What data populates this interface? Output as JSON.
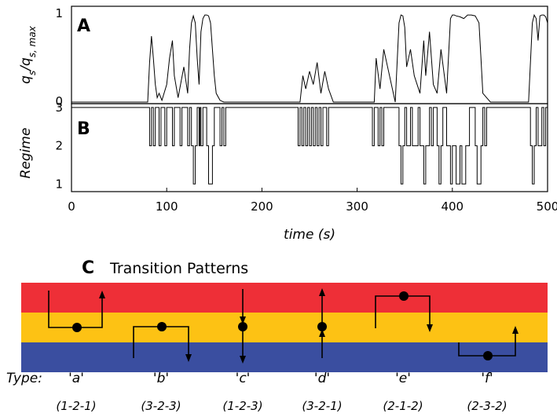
{
  "chart_data": [
    {
      "panel": "A",
      "type": "line",
      "ylabel": "q_s/q_s,max",
      "ylabel_parts": {
        "q": "q",
        "sub1": "s",
        "slash": "/",
        "sub2": "s, max"
      },
      "xlabel": "",
      "xlim": [
        0,
        500
      ],
      "ylim": [
        0,
        1
      ],
      "yticks": [
        "0",
        "1"
      ],
      "grid": false,
      "x": [
        0,
        80,
        82,
        84,
        86,
        88,
        90,
        92,
        95,
        100,
        103,
        106,
        108,
        112,
        118,
        122,
        124,
        126,
        128,
        130,
        132,
        134,
        136,
        138,
        140,
        142,
        144,
        146,
        148,
        150,
        152,
        156,
        160,
        240,
        243,
        246,
        250,
        254,
        258,
        262,
        266,
        270,
        275,
        300,
        318,
        320,
        324,
        328,
        340,
        344,
        346,
        348,
        350,
        352,
        356,
        360,
        366,
        370,
        372,
        376,
        380,
        384,
        388,
        394,
        398,
        400,
        402,
        404,
        408,
        412,
        416,
        420,
        424,
        428,
        430,
        432,
        440,
        480,
        484,
        486,
        488,
        490,
        492,
        494,
        496,
        498,
        500
      ],
      "values": [
        0.0,
        0.0,
        0.45,
        0.75,
        0.5,
        0.2,
        0.05,
        0.1,
        0.02,
        0.2,
        0.5,
        0.7,
        0.3,
        0.05,
        0.4,
        0.1,
        0.6,
        0.9,
        0.98,
        0.9,
        0.5,
        0.2,
        0.8,
        0.95,
        0.99,
        0.99,
        0.98,
        0.9,
        0.6,
        0.3,
        0.1,
        0.02,
        0.0,
        0.0,
        0.3,
        0.15,
        0.35,
        0.2,
        0.45,
        0.1,
        0.35,
        0.15,
        0.0,
        0.0,
        0.0,
        0.5,
        0.15,
        0.6,
        0.0,
        0.9,
        0.99,
        0.98,
        0.85,
        0.4,
        0.6,
        0.3,
        0.1,
        0.7,
        0.3,
        0.8,
        0.2,
        0.1,
        0.6,
        0.1,
        0.95,
        0.99,
        0.99,
        0.98,
        0.97,
        0.95,
        0.99,
        0.99,
        0.98,
        0.9,
        0.5,
        0.1,
        0.0,
        0.0,
        0.9,
        0.99,
        0.95,
        0.7,
        0.98,
        0.99,
        0.99,
        0.97,
        0.9
      ]
    },
    {
      "panel": "B",
      "type": "line",
      "step": true,
      "ylabel": "Regime",
      "xlabel": "time (s)",
      "xlim": [
        0,
        500
      ],
      "ylim": [
        0.8,
        3.1
      ],
      "yticks": [
        "1",
        "2",
        "3"
      ],
      "xticks": [
        "0",
        "100",
        "200",
        "300",
        "400",
        "500"
      ],
      "grid": false,
      "x": [
        0,
        82,
        84,
        86,
        88,
        92,
        94,
        98,
        100,
        106,
        108,
        114,
        116,
        122,
        124,
        126,
        128,
        130,
        132,
        134,
        135,
        136,
        138,
        142,
        144,
        148,
        150,
        156,
        158,
        160,
        162,
        238,
        240,
        242,
        244,
        246,
        248,
        250,
        252,
        254,
        256,
        258,
        260,
        262,
        264,
        268,
        270,
        316,
        318,
        322,
        324,
        326,
        328,
        344,
        346,
        348,
        350,
        352,
        356,
        358,
        364,
        366,
        370,
        372,
        376,
        378,
        380,
        384,
        386,
        388,
        390,
        394,
        398,
        400,
        404,
        408,
        410,
        414,
        418,
        424,
        426,
        430,
        432,
        434,
        436,
        482,
        484,
        486,
        488,
        490,
        494,
        496,
        498,
        500
      ],
      "values": [
        3,
        2,
        3,
        2,
        3,
        2,
        3,
        2,
        3,
        2,
        3,
        2,
        3,
        2,
        3,
        2,
        1,
        2,
        3,
        2,
        3,
        2,
        3,
        2,
        1,
        2,
        3,
        2,
        3,
        2,
        3,
        2,
        3,
        2,
        3,
        2,
        3,
        2,
        3,
        2,
        3,
        2,
        3,
        2,
        3,
        2,
        3,
        2,
        3,
        2,
        3,
        2,
        3,
        2,
        1,
        2,
        3,
        2,
        3,
        2,
        3,
        2,
        1,
        2,
        3,
        2,
        3,
        2,
        1,
        2,
        3,
        2,
        1,
        2,
        1,
        2,
        1,
        2,
        3,
        2,
        1,
        2,
        3,
        2,
        3,
        2,
        1,
        2,
        3,
        2,
        3,
        2,
        3,
        2
      ]
    },
    {
      "panel": "C",
      "type": "diagram",
      "title": "Transition Patterns",
      "band_colors": {
        "top": "#ee2f37",
        "middle": "#fdc214",
        "bottom": "#3a4ea0"
      },
      "type_prefix": "Type:",
      "patterns": [
        {
          "name": "'a'",
          "code": "(1-2-1)"
        },
        {
          "name": "'b'",
          "code": "(3-2-3)"
        },
        {
          "name": "'c'",
          "code": "(1-2-3)"
        },
        {
          "name": "'d'",
          "code": "(3-2-1)"
        },
        {
          "name": "'e'",
          "code": "(2-1-2)"
        },
        {
          "name": "'f'",
          "code": "(2-3-2)"
        }
      ]
    }
  ]
}
